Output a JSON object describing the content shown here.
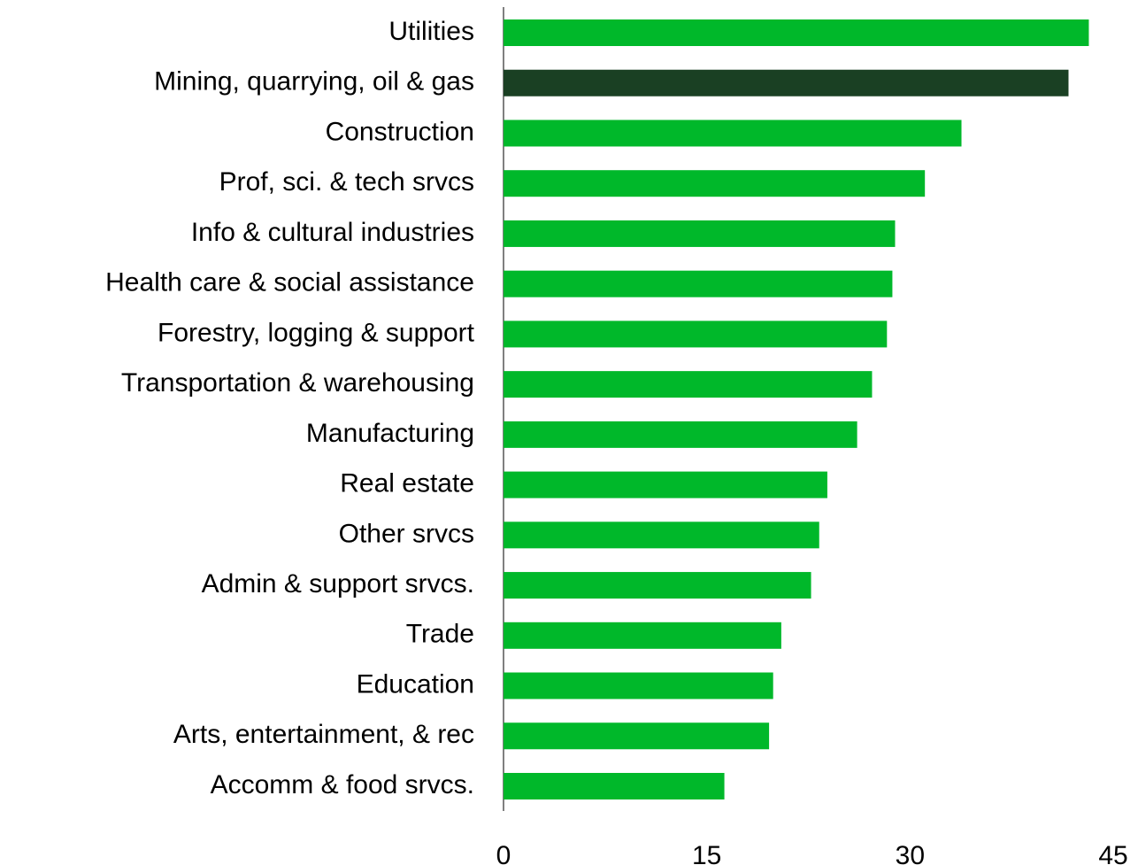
{
  "chart_data": {
    "type": "barh",
    "categories": [
      "Utilities",
      "Mining, quarrying, oil & gas",
      "Construction",
      "Prof, sci. & tech srvcs",
      "Info & cultural industries",
      "Health care & social assistance",
      "Forestry, logging & support",
      "Transportation & warehousing",
      "Manufacturing",
      "Real estate",
      "Other srvcs",
      "Admin & support srvcs.",
      "Trade",
      "Education",
      "Arts, entertainment, & rec",
      "Accomm & food srvcs."
    ],
    "values": [
      43.2,
      41.7,
      33.8,
      31.1,
      28.9,
      28.7,
      28.3,
      27.2,
      26.1,
      23.9,
      23.3,
      22.7,
      20.5,
      19.9,
      19.6,
      16.3
    ],
    "colors": [
      "#00b82a",
      "#1a4023",
      "#00b82a",
      "#00b82a",
      "#00b82a",
      "#00b82a",
      "#00b82a",
      "#00b82a",
      "#00b82a",
      "#00b82a",
      "#00b82a",
      "#00b82a",
      "#00b82a",
      "#00b82a",
      "#00b82a",
      "#00b82a"
    ],
    "xlim": [
      0,
      45
    ],
    "xticks": [
      0,
      15,
      30,
      45
    ],
    "grid": false
  }
}
